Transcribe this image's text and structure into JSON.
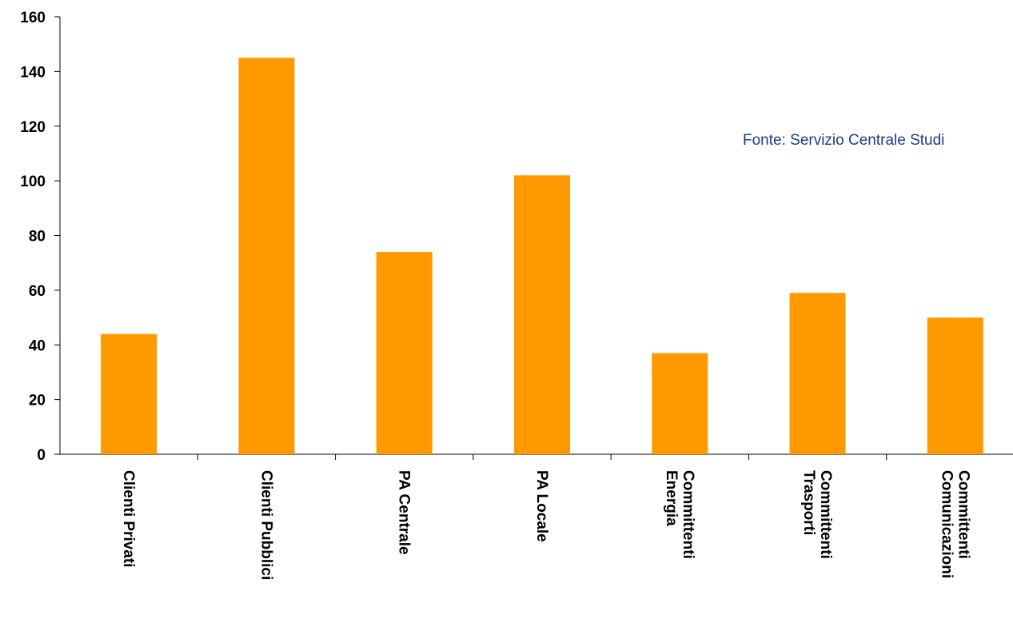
{
  "chart_data": {
    "type": "bar",
    "categories": [
      [
        "Clienti Privati"
      ],
      [
        "Clienti Pubblici"
      ],
      [
        "PA Centrale"
      ],
      [
        "PA Locale"
      ],
      [
        "Committenti",
        "Energia"
      ],
      [
        "Committenti",
        "Trasporti"
      ],
      [
        "Committenti",
        "Comunicazioni"
      ]
    ],
    "values": [
      44,
      145,
      74,
      102,
      37,
      59,
      50
    ],
    "ylim": [
      0,
      160
    ],
    "yticks": [
      "0",
      "20",
      "40",
      "60",
      "80",
      "100",
      "120",
      "140",
      "160"
    ],
    "title": "",
    "xlabel": "",
    "ylabel": "",
    "grid": false,
    "annotation": "Fonte: Servizio Centrale Studi",
    "colors": {
      "bar": "#FF9900",
      "axis": "#000000",
      "annotation": "#1F3A93"
    }
  }
}
